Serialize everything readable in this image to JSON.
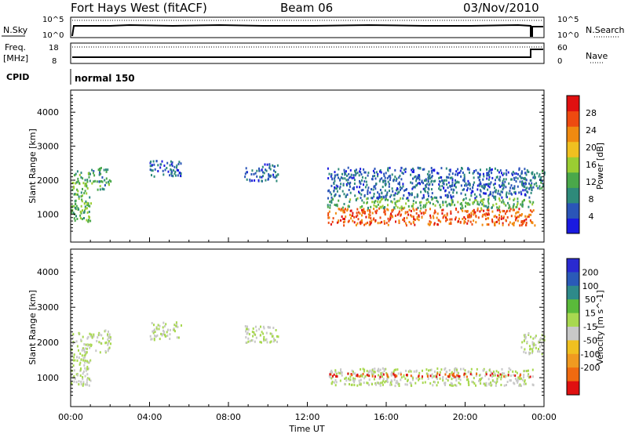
{
  "header": {
    "title": "Fort Hays West (fitACF)",
    "beam": "Beam 06",
    "date": "03/Nov/2010"
  },
  "strip_labels": {
    "nsky": "N.Sky",
    "nsky_top": "10^5",
    "nsky_bottom": "10^0",
    "nsearch": "N.Search",
    "nsearch_top": "10^5",
    "nsearch_bottom": "10^0",
    "freq_line1": "Freq.",
    "freq_line2": "[MHz]",
    "freq_top": "18",
    "freq_bottom": "8",
    "nave": "Nave",
    "nave_top": "60",
    "nave_bottom": "0",
    "cpid": "CPID",
    "cpid_value": "normal 150"
  },
  "axes": {
    "ylabel": "Slant Range [km]",
    "xlabel": "Time UT",
    "yticks": [
      "1000",
      "2000",
      "3000",
      "4000"
    ],
    "xticks": [
      "00:00",
      "04:00",
      "08:00",
      "12:00",
      "16:00",
      "20:00",
      "00:00"
    ]
  },
  "colorbars": {
    "power": {
      "label": "Power [dB]",
      "ticks": [
        "4",
        "8",
        "12",
        "16",
        "20",
        "24",
        "28"
      ],
      "colors": [
        "#1a1ae0",
        "#2a55b8",
        "#2e8a7a",
        "#4aa84a",
        "#9acd32",
        "#f0c020",
        "#f08a10",
        "#ee4a10",
        "#e01010"
      ]
    },
    "velocity": {
      "label": "Velocity [m s^-1]",
      "ticks": [
        "200",
        "100",
        "50",
        "15",
        "-15",
        "-50",
        "-100",
        "-200"
      ],
      "colors": [
        "#2a2ad0",
        "#2a5ab8",
        "#2e8a8a",
        "#5aba3a",
        "#a8d850",
        "#c8c8c8",
        "#f0c020",
        "#f09a20",
        "#f06a10",
        "#e01010"
      ]
    }
  },
  "chart_data": [
    {
      "type": "heatmap",
      "title": "Power",
      "xlabel": "Time UT",
      "ylabel": "Slant Range [km]",
      "x_range_hours": [
        0,
        24
      ],
      "y_range_km": [
        180,
        4650
      ],
      "colorbar_range_db": [
        0,
        30
      ],
      "regions": [
        {
          "t": [
            0.0,
            1.0
          ],
          "range_km": [
            800,
            2300
          ],
          "power_db": 12
        },
        {
          "t": [
            1.0,
            2.0
          ],
          "range_km": [
            1750,
            2400
          ],
          "power_db": 10
        },
        {
          "t": [
            4.0,
            5.6
          ],
          "range_km": [
            2100,
            2600
          ],
          "power_db": 6
        },
        {
          "t": [
            8.8,
            10.5
          ],
          "range_km": [
            2000,
            2500
          ],
          "power_db": 6
        },
        {
          "t": [
            13.0,
            23.5
          ],
          "range_km": [
            700,
            1200
          ],
          "power_db": 24
        },
        {
          "t": [
            13.0,
            23.5
          ],
          "range_km": [
            1200,
            1500
          ],
          "power_db": 12
        },
        {
          "t": [
            13.0,
            23.5
          ],
          "range_km": [
            1500,
            2400
          ],
          "power_db": 6
        },
        {
          "t": [
            22.8,
            24.0
          ],
          "range_km": [
            1700,
            2300
          ],
          "power_db": 8
        }
      ]
    },
    {
      "type": "heatmap",
      "title": "Velocity",
      "xlabel": "Time UT",
      "ylabel": "Slant Range [km]",
      "x_range_hours": [
        0,
        24
      ],
      "y_range_km": [
        180,
        4650
      ],
      "colorbar_range_ms": [
        -250,
        250
      ],
      "regions": [
        {
          "t": [
            0.0,
            1.0
          ],
          "range_km": [
            800,
            2300
          ],
          "velocity_ms": 0
        },
        {
          "t": [
            1.0,
            2.0
          ],
          "range_km": [
            1750,
            2400
          ],
          "velocity_ms": 0
        },
        {
          "t": [
            4.0,
            5.6
          ],
          "range_km": [
            2100,
            2600
          ],
          "velocity_ms": 0
        },
        {
          "t": [
            8.8,
            10.5
          ],
          "range_km": [
            2000,
            2500
          ],
          "velocity_ms": 0
        },
        {
          "t": [
            13.0,
            23.5
          ],
          "range_km": [
            800,
            1300
          ],
          "velocity_ms": 0
        },
        {
          "t": [
            13.0,
            23.5
          ],
          "range_km": [
            1050,
            1150
          ],
          "velocity_ms": -200
        },
        {
          "t": [
            22.8,
            24.0
          ],
          "range_km": [
            1700,
            2300
          ],
          "velocity_ms": 0
        }
      ]
    }
  ]
}
